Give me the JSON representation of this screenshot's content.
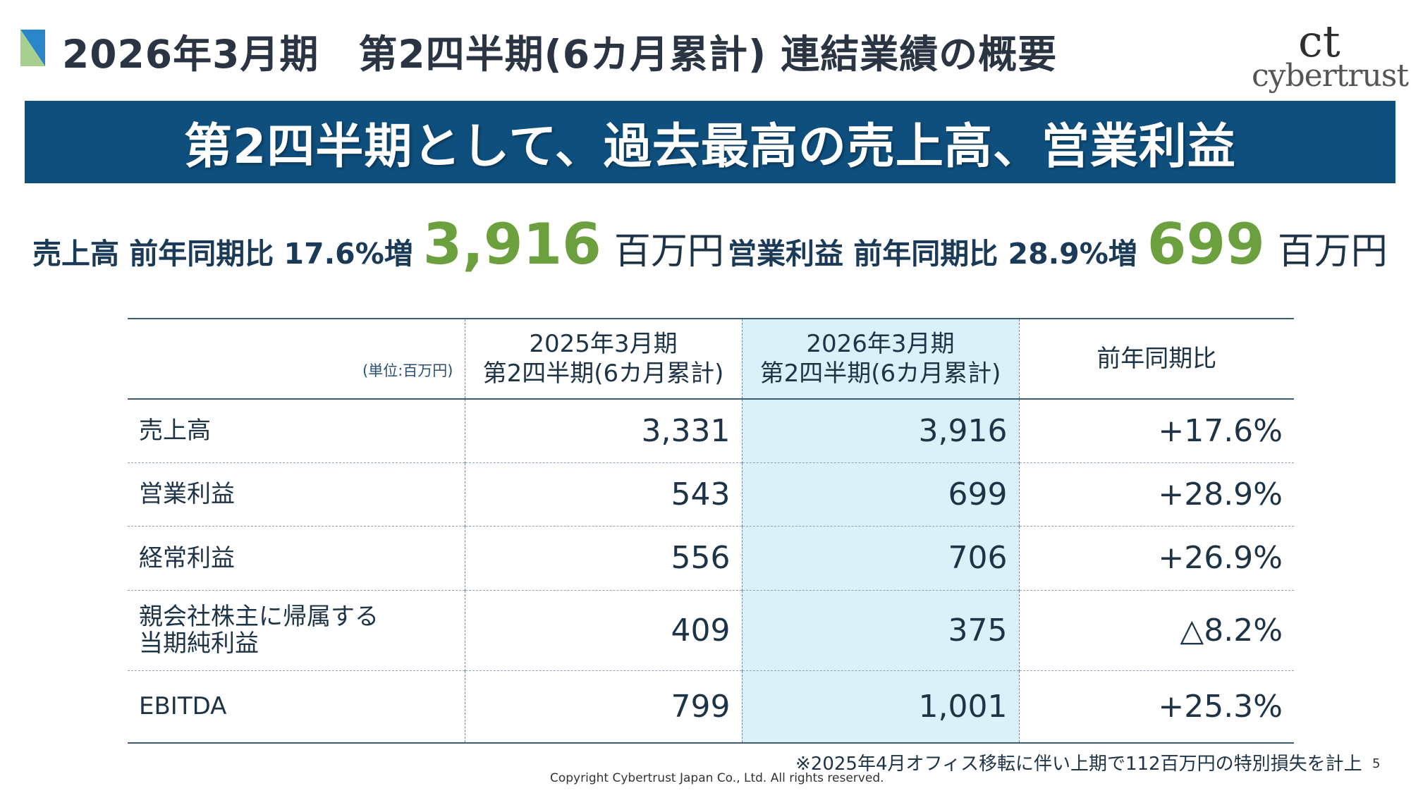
{
  "header": {
    "title": "2026年3月期　第2四半期(6カ月累計) 連結業績の概要",
    "logo_text": "cybertrust",
    "logo_mark": "ct"
  },
  "banner": {
    "text": "第2四半期として、過去最高の売上高、営業利益"
  },
  "kpis": {
    "sales": {
      "label": "売上高 前年同期比 17.6%増",
      "value": "3,916",
      "unit": "百万円"
    },
    "operating_profit": {
      "label": "営業利益 前年同期比 28.9%増",
      "value": "699",
      "unit": "百万円"
    }
  },
  "table": {
    "unit_label": "(単位:百万円)",
    "headers": [
      {
        "line1": "2025年3月期",
        "line2": "第2四半期(6カ月累計)"
      },
      {
        "line1": "2026年3月期",
        "line2": "第2四半期(6カ月累計)"
      },
      {
        "line1": "前年同期比"
      }
    ],
    "rows": [
      {
        "name": "売上高",
        "prev": "3,331",
        "curr": "3,916",
        "yoy": "+17.6%"
      },
      {
        "name": "営業利益",
        "prev": "543",
        "curr": "699",
        "yoy": "+28.9%"
      },
      {
        "name": "経常利益",
        "prev": "556",
        "curr": "706",
        "yoy": "+26.9%"
      },
      {
        "name_line1": "親会社株主に帰属する",
        "name_line2": "当期純利益",
        "prev": "409",
        "curr": "375",
        "yoy": "△8.2%"
      },
      {
        "name": "EBITDA",
        "prev": "799",
        "curr": "1,001",
        "yoy": "+25.3%"
      }
    ]
  },
  "footer": {
    "note": "※2025年4月オフィス移転に伴い上期で112百万円の特別損失を計上",
    "page_number": "5",
    "copyright": "Copyright Cybertrust Japan Co., Ltd. All rights reserved."
  },
  "colors": {
    "banner": "#0e4f7e",
    "accent_green": "#6c9f3d",
    "highlight_column": "#dcf0f9",
    "text_dark": "#1f3347"
  }
}
